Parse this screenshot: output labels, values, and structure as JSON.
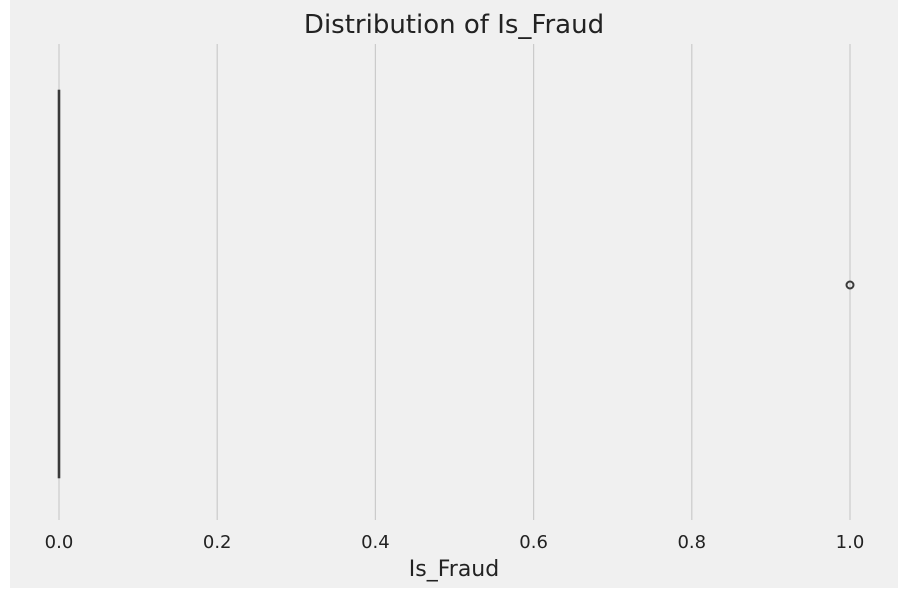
{
  "chart_data": {
    "type": "box",
    "title": "Distribution of Is_Fraud",
    "xlabel": "Is_Fraud",
    "ylabel": "",
    "xlim": [
      0.0,
      1.0
    ],
    "x_ticks": [
      0.0,
      0.2,
      0.4,
      0.6,
      0.8,
      1.0
    ],
    "x_tick_labels": [
      "0.0",
      "0.2",
      "0.4",
      "0.6",
      "0.8",
      "1.0"
    ],
    "orientation": "horizontal",
    "grid": "vertical",
    "box": {
      "min": 0.0,
      "q1": 0.0,
      "median": 0.0,
      "q3": 0.0,
      "max": 0.0,
      "outliers": [
        1.0
      ]
    },
    "colors": {
      "background": "#f0f0f0",
      "grid": "#cbcbcb",
      "box_line": "#3a3a3a",
      "text": "#222222"
    }
  }
}
